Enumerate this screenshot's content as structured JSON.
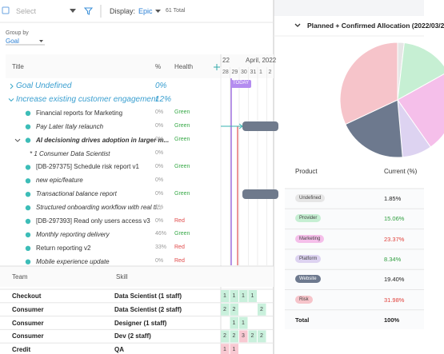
{
  "toolbar": {
    "select": "Select",
    "display_label": "Display:",
    "display_value": "Epic",
    "total": "61 Total"
  },
  "group_by": {
    "label": "Group by",
    "value": "Goal"
  },
  "table": {
    "headers": [
      "Title",
      "%",
      "Health"
    ],
    "rows": [
      [
        "Goal Undefined",
        "0%"
      ],
      [
        "Increase existing customer engagement",
        "12%"
      ],
      [
        "Financial reports for Marketing",
        "0%",
        "Green"
      ],
      [
        "Pay Later Italy relaunch",
        "0%",
        "Green"
      ],
      [
        "AI decisioning drives adoption in larger m...",
        "0%",
        "Green"
      ],
      [
        "* 1 Consumer Data Scientist",
        "0%"
      ],
      [
        "[DB-297375] Schedule risk report v1",
        "0%",
        "Green"
      ],
      [
        "new epic/feature",
        "0%"
      ],
      [
        "Transactional balance report",
        "0%",
        "Green"
      ],
      [
        "Structured onboarding workflow with real ti...",
        "0%"
      ],
      [
        "[DB-297393] Read only users access v3",
        "0%",
        "Red"
      ],
      [
        "Monthly reporting delivery",
        "46%",
        "Green"
      ],
      [
        "Return reporting v2",
        "33%",
        "Red"
      ],
      [
        "Mobile experience update",
        "0%",
        "Red"
      ]
    ]
  },
  "timeline": {
    "prev_month": "22",
    "month": "April, 2022",
    "days": [
      "28",
      "29",
      "30",
      "31",
      "1",
      "2"
    ],
    "today": "TODAY"
  },
  "staffing": {
    "headers": [
      "Team",
      "Skill"
    ],
    "rows": [
      {
        "team": "Checkout",
        "skill": "Data Scientist (1 staff)",
        "cells": [
          1,
          1,
          1,
          1,
          null,
          null
        ]
      },
      {
        "team": "Consumer",
        "skill": "Data Scientist (2 staff)",
        "cells": [
          2,
          2,
          null,
          null,
          2,
          null
        ]
      },
      {
        "team": "Consumer",
        "skill": "Designer (1 staff)",
        "cells": [
          null,
          1,
          1,
          null,
          null,
          null
        ]
      },
      {
        "team": "Consumer",
        "skill": "Dev (2 staff)",
        "cells": [
          2,
          2,
          3,
          2,
          2,
          null
        ]
      },
      {
        "team": "Credit",
        "skill": "QA",
        "cells": [
          1,
          1,
          null,
          null,
          null,
          null
        ]
      }
    ]
  },
  "allocation": {
    "title": "Planned + Confirmed Allocation (2022/03/2",
    "headers": [
      "Product",
      "Current (%)"
    ],
    "rows": [
      {
        "product": "Undefined",
        "current": {
          "value": 1.85,
          "label": "1.85%"
        },
        "color": "#e6e6e6",
        "text_color": "#222"
      },
      {
        "product": "Provider",
        "current": {
          "value": 15.06,
          "label": "15.06%"
        },
        "color": "#c6efd3",
        "text_color": "#2e9e3e"
      },
      {
        "product": "Marketing",
        "current": {
          "value": 23.37,
          "label": "23.37%"
        },
        "color": "#f5bfea",
        "text_color": "#e0403a"
      },
      {
        "product": "Platform",
        "current": {
          "value": 8.34,
          "label": "8.34%"
        },
        "color": "#ddd3f1",
        "text_color": "#2e9e3e"
      },
      {
        "product": "Website",
        "current": {
          "value": 19.4,
          "label": "19.40%"
        },
        "color": "#6d798e",
        "text_color": "#222"
      },
      {
        "product": "Risk",
        "current": {
          "value": 31.98,
          "label": "31.98%"
        },
        "color": "#f6c4ca",
        "text_color": "#e0403a"
      }
    ],
    "total": [
      "Total",
      "100%"
    ]
  }
}
